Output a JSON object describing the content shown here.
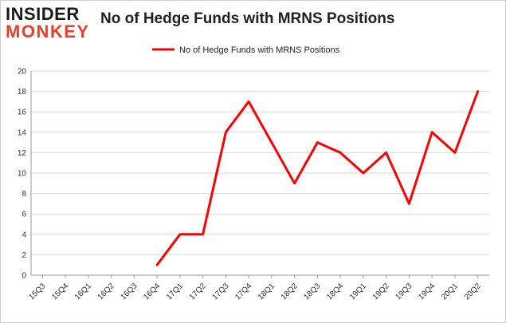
{
  "logo": {
    "top_text": "INSIDER",
    "bottom_text": "MONKEY"
  },
  "colors": {
    "series": "#ff0000",
    "grid": "#d9d9d9",
    "axis": "#999999",
    "logo_dark": "#1a1a1a",
    "logo_accent": "#e8402b"
  },
  "chart_data": {
    "type": "line",
    "title": "No of Hedge Funds with MRNS Positions",
    "xlabel": "",
    "ylabel": "",
    "ylim": [
      0,
      20
    ],
    "yticks": [
      0,
      2,
      4,
      6,
      8,
      10,
      12,
      14,
      16,
      18,
      20
    ],
    "grid": "horizontal",
    "legend_position": "top-center",
    "categories": [
      "15Q3",
      "15Q4",
      "16Q1",
      "16Q2",
      "16Q3",
      "16Q4",
      "17Q1",
      "17Q2",
      "17Q3",
      "17Q4",
      "18Q1",
      "18Q2",
      "18Q3",
      "18Q4",
      "19Q1",
      "19Q2",
      "19Q3",
      "19Q4",
      "20Q1",
      "20Q2"
    ],
    "series": [
      {
        "name": "No of Hedge Funds with MRNS Positions",
        "values": [
          null,
          null,
          null,
          null,
          null,
          1,
          4,
          4,
          14,
          17,
          13,
          9,
          13,
          12,
          10,
          12,
          7,
          14,
          12,
          18
        ]
      }
    ]
  }
}
